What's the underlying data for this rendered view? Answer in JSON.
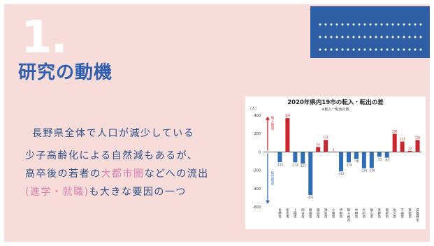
{
  "slide": {
    "number": "1.",
    "title": "研究の動機",
    "line1": "長野県全体で人口が減少している",
    "line2": "少子高齢化による自然減もあるが、",
    "line3_a": "高卒後の若者の",
    "line3_b": "大都市圏",
    "line3_c": "などへの流出",
    "line4_a": "(進学・就職)",
    "line4_b": "も大きな要因の一つ",
    "colors": {
      "background": "#f8dcd9",
      "accent_blue": "#2e5ea6",
      "highlight_pink": "#d983b3"
    }
  },
  "chart_data": {
    "type": "bar",
    "title": "2020年県内19市の転入・転出の差",
    "subtitle": "※転入ー転出の数",
    "yunit": "（人）",
    "ylim": [
      -600,
      400
    ],
    "yticks": [
      400,
      200,
      0,
      -200,
      -400,
      -600
    ],
    "positive_label": "転入超過",
    "negative_label": "転出超過",
    "categories": [
      "長野市",
      "松本市",
      "上田市",
      "岡谷市",
      "飯田市",
      "諏訪市",
      "須坂市",
      "小諸市",
      "伊那市",
      "駒ヶ根市",
      "中野市",
      "大町市",
      "飯山市",
      "茅野市",
      "塩尻市",
      "佐久市",
      "千曲市",
      "東御市",
      "安曇野市"
    ],
    "values": [
      -113,
      369,
      -114,
      -127,
      -471,
      54,
      131,
      1,
      -212,
      -114,
      -78,
      -179,
      -176,
      -53,
      -63,
      198,
      113,
      12,
      130
    ],
    "colors": {
      "positive": "#c9252c",
      "negative": "#2f6db5"
    }
  }
}
